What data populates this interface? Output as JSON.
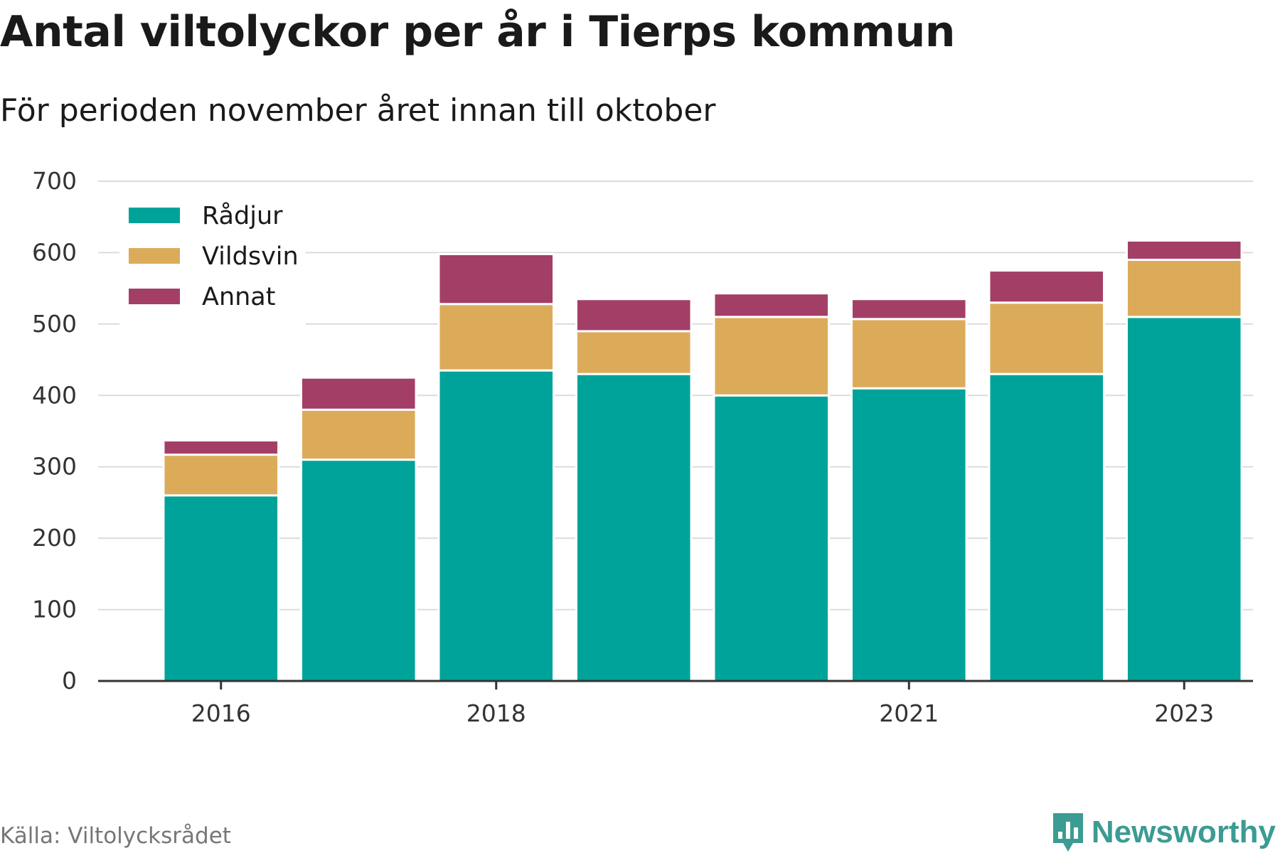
{
  "title": "Antal viltolyckor per år i Tierps kommun",
  "subtitle": "För perioden november året innan till oktober",
  "source": "Källa: Viltolycksrådet",
  "brand": {
    "name": "Newsworthy",
    "icon": "newsworthy-logo-icon",
    "color": "#3c9b93"
  },
  "chart_data": {
    "type": "bar",
    "stacked": true,
    "categories": [
      "2016",
      "2017",
      "2018",
      "2019",
      "2020",
      "2021",
      "2022",
      "2023"
    ],
    "x_tick_labels": [
      "2016",
      "2018",
      "2021",
      "2023"
    ],
    "series": [
      {
        "name": "Rådjur",
        "color": "#00a39a",
        "values": [
          260,
          310,
          435,
          430,
          400,
          410,
          430,
          510
        ]
      },
      {
        "name": "Vildsvin",
        "color": "#dcab5a",
        "values": [
          57,
          70,
          93,
          60,
          110,
          97,
          100,
          80
        ]
      },
      {
        "name": "Annat",
        "color": "#a33f66",
        "values": [
          20,
          45,
          70,
          45,
          33,
          28,
          45,
          27
        ]
      }
    ],
    "ylim": [
      0,
      700
    ],
    "yticks": [
      0,
      100,
      200,
      300,
      400,
      500,
      600,
      700
    ],
    "grid": true,
    "legend_position": "top-left",
    "xlabel": "",
    "ylabel": ""
  }
}
